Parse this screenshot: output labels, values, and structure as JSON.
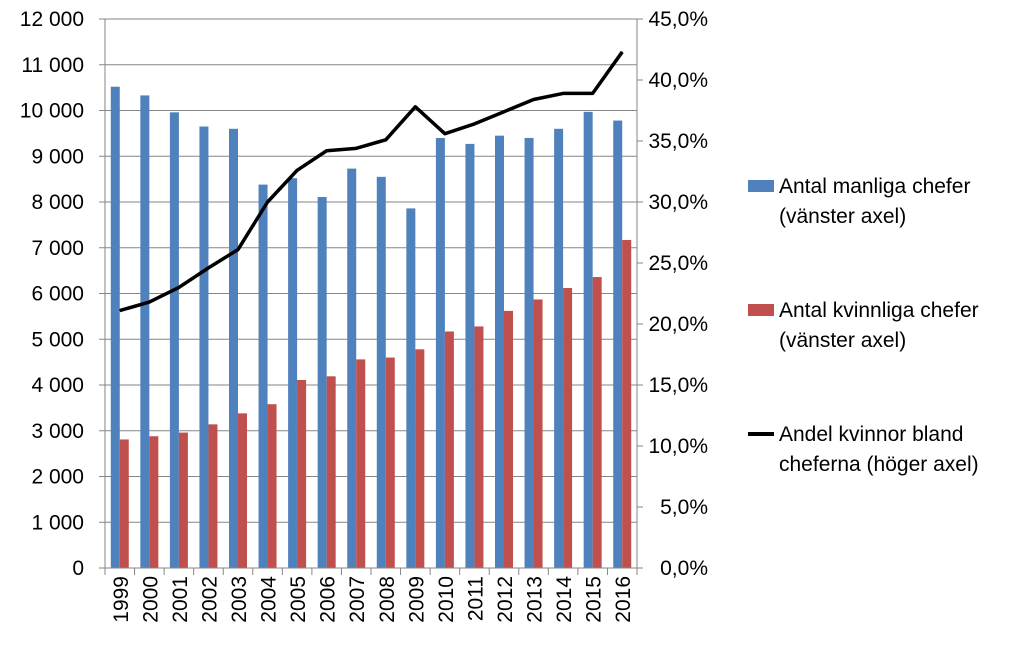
{
  "chart_data": {
    "type": "bar+line",
    "categories": [
      "1999",
      "2000",
      "2001",
      "2002",
      "2003",
      "2004",
      "2005",
      "2006",
      "2007",
      "2008",
      "2009",
      "2010",
      "2011",
      "2012",
      "2013",
      "2014",
      "2015",
      "2016"
    ],
    "series": [
      {
        "name": "Antal manliga chefer (vänster axel)",
        "type": "bar",
        "axis": "left",
        "color": "#4F81BD",
        "values": [
          10520,
          10330,
          9960,
          9650,
          9600,
          8380,
          8520,
          8110,
          8730,
          8550,
          7860,
          9400,
          9270,
          9450,
          9400,
          9600,
          9970,
          9780
        ]
      },
      {
        "name": "Antal kvinnliga chefer (vänster axel)",
        "type": "bar",
        "axis": "left",
        "color": "#C0504D",
        "values": [
          2810,
          2880,
          2960,
          3140,
          3380,
          3580,
          4110,
          4190,
          4560,
          4600,
          4780,
          5170,
          5280,
          5620,
          5870,
          6120,
          6360,
          7170
        ]
      },
      {
        "name": "Andel kvinnor bland cheferna (höger axel)",
        "type": "line",
        "axis": "right",
        "color": "#000000",
        "values": [
          21.1,
          21.8,
          23.0,
          24.6,
          26.1,
          30.0,
          32.6,
          34.2,
          34.4,
          35.1,
          37.8,
          35.6,
          36.4,
          37.4,
          38.4,
          38.9,
          38.9,
          42.3
        ]
      }
    ],
    "legend": [
      {
        "line1": "Antal manliga chefer",
        "line2": "(vänster axel)",
        "color": "#4F81BD",
        "kind": "bar"
      },
      {
        "line1": "Antal kvinnliga chefer",
        "line2": "(vänster axel)",
        "color": "#C0504D",
        "kind": "bar"
      },
      {
        "line1": "Andel kvinnor bland",
        "line2": "cheferna (höger axel)",
        "color": "#000000",
        "kind": "line"
      }
    ],
    "left_axis": {
      "ylim": [
        0,
        12000
      ],
      "step": 1000,
      "tick_labels": [
        "0",
        "1 000",
        "2 000",
        "3 000",
        "4 000",
        "5 000",
        "6 000",
        "7 000",
        "8 000",
        "9 000",
        "10 000",
        "11 000",
        "12 000"
      ]
    },
    "right_axis": {
      "ylim": [
        0,
        45
      ],
      "step": 5,
      "tick_labels": [
        "0,0%",
        "5,0%",
        "10,0%",
        "15,0%",
        "20,0%",
        "25,0%",
        "30,0%",
        "35,0%",
        "40,0%",
        "45,0%"
      ]
    },
    "grid": true,
    "legend_position": "right"
  }
}
